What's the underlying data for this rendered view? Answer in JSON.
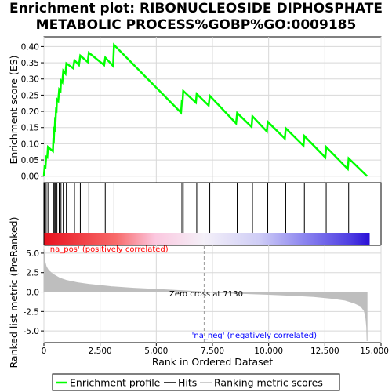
{
  "title_line1": "Enrichment plot: RIBONUCLEOSIDE DIPHOSPHATE",
  "title_line2": "METABOLIC PROCESS%GOBP%GO:0009185",
  "legend": {
    "enrichment": "Enrichment profile",
    "hits": "Hits",
    "ranking": "Ranking metric scores"
  },
  "colors": {
    "enrichment_line": "#00ff00",
    "ranking_fill": "#bebebe",
    "pos_label": "#ff0000",
    "neg_label": "#0000ff"
  },
  "chart_data": {
    "type": "line",
    "xlabel": "Rank in Ordered Dataset",
    "xlim": [
      0,
      15000
    ],
    "x_ticks": [
      0,
      2500,
      5000,
      7500,
      10000,
      12500,
      15000
    ],
    "x_tick_labels": [
      "0",
      "2,500",
      "5,000",
      "7,500",
      "10,000",
      "12,500",
      "15,000"
    ],
    "es_panel": {
      "ylabel": "Enrichment score (ES)",
      "ylim": [
        -0.02,
        0.43
      ],
      "y_ticks": [
        0.0,
        0.05,
        0.1,
        0.15,
        0.2,
        0.25,
        0.3,
        0.35,
        0.4
      ],
      "y_tick_labels": [
        "0.00",
        "0.05",
        "0.10",
        "0.15",
        "0.20",
        "0.25",
        "0.30",
        "0.35",
        "0.40"
      ],
      "profile": [
        [
          0,
          0.0
        ],
        [
          30,
          0.03
        ],
        [
          70,
          0.028
        ],
        [
          100,
          0.06
        ],
        [
          150,
          0.058
        ],
        [
          180,
          0.09
        ],
        [
          400,
          0.077
        ],
        [
          420,
          0.11
        ],
        [
          440,
          0.108
        ],
        [
          460,
          0.145
        ],
        [
          480,
          0.143
        ],
        [
          500,
          0.175
        ],
        [
          520,
          0.173
        ],
        [
          540,
          0.205
        ],
        [
          560,
          0.203
        ],
        [
          580,
          0.237
        ],
        [
          640,
          0.232
        ],
        [
          680,
          0.268
        ],
        [
          740,
          0.263
        ],
        [
          760,
          0.295
        ],
        [
          820,
          0.29
        ],
        [
          860,
          0.325
        ],
        [
          960,
          0.316
        ],
        [
          1000,
          0.348
        ],
        [
          1300,
          0.333
        ],
        [
          1360,
          0.358
        ],
        [
          1560,
          0.343
        ],
        [
          1620,
          0.372
        ],
        [
          1950,
          0.352
        ],
        [
          2000,
          0.381
        ],
        [
          2680,
          0.343
        ],
        [
          2730,
          0.366
        ],
        [
          3080,
          0.34
        ],
        [
          3120,
          0.405
        ],
        [
          6100,
          0.196
        ],
        [
          6140,
          0.232
        ],
        [
          6170,
          0.231
        ],
        [
          6200,
          0.263
        ],
        [
          6760,
          0.227
        ],
        [
          6800,
          0.254
        ],
        [
          7330,
          0.218
        ],
        [
          7380,
          0.248
        ],
        [
          8550,
          0.163
        ],
        [
          8600,
          0.195
        ],
        [
          9240,
          0.152
        ],
        [
          9280,
          0.185
        ],
        [
          9920,
          0.138
        ],
        [
          9960,
          0.168
        ],
        [
          10720,
          0.116
        ],
        [
          10760,
          0.148
        ],
        [
          11550,
          0.094
        ],
        [
          11590,
          0.124
        ],
        [
          12520,
          0.058
        ],
        [
          12560,
          0.09
        ],
        [
          13520,
          0.022
        ],
        [
          13560,
          0.055
        ],
        [
          14380,
          0.0
        ]
      ]
    },
    "hits": [
      30,
      100,
      180,
      420,
      460,
      500,
      540,
      580,
      680,
      760,
      860,
      1000,
      1360,
      1620,
      2000,
      2730,
      3120,
      6140,
      6200,
      6800,
      7380,
      8600,
      9280,
      9960,
      10760,
      11590,
      12560,
      13560
    ],
    "ranking_panel": {
      "ylabel": "Ranked list metric (PreRanked)",
      "ylim": [
        -6.5,
        6.0
      ],
      "y_ticks": [
        -5.0,
        -2.5,
        0.0,
        2.5,
        5.0
      ],
      "y_tick_labels": [
        "-5.0",
        "-2.5",
        "0.0",
        "2.5",
        "5.0"
      ],
      "metric": [
        [
          0,
          5.5
        ],
        [
          40,
          4.0
        ],
        [
          100,
          3.3
        ],
        [
          200,
          2.8
        ],
        [
          400,
          2.3
        ],
        [
          700,
          1.8
        ],
        [
          1000,
          1.5
        ],
        [
          1500,
          1.2
        ],
        [
          2000,
          1.0
        ],
        [
          3000,
          0.7
        ],
        [
          4000,
          0.5
        ],
        [
          5000,
          0.35
        ],
        [
          6000,
          0.2
        ],
        [
          7130,
          0.0
        ],
        [
          8000,
          -0.1
        ],
        [
          9000,
          -0.2
        ],
        [
          10000,
          -0.3
        ],
        [
          11000,
          -0.42
        ],
        [
          12000,
          -0.58
        ],
        [
          12800,
          -0.8
        ],
        [
          13400,
          -1.05
        ],
        [
          13800,
          -1.4
        ],
        [
          14100,
          -1.8
        ],
        [
          14250,
          -2.4
        ],
        [
          14320,
          -3.2
        ],
        [
          14360,
          -4.5
        ],
        [
          14380,
          -6.3
        ]
      ],
      "zero_cross": 7130,
      "zero_cross_label": "Zero cross at 7130",
      "pos_label": "'na_pos' (positively correlated)",
      "neg_label": "'na_neg' (negatively correlated)"
    },
    "n_genes": 14380
  }
}
